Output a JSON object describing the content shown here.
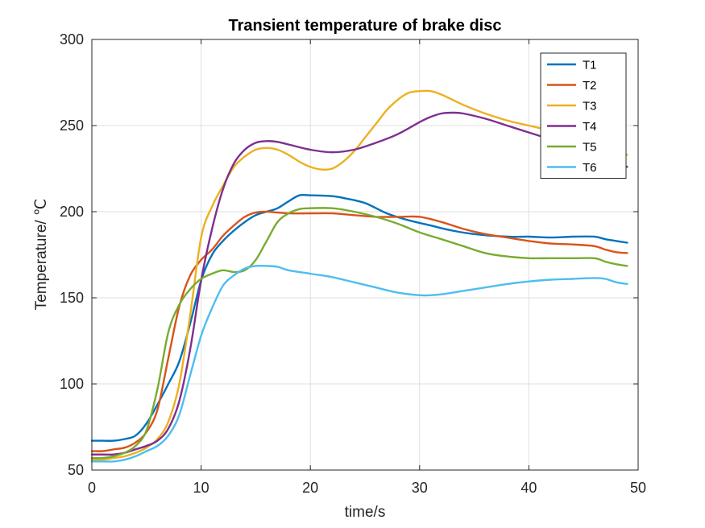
{
  "chart_data": {
    "type": "line",
    "title": "Transient temperature of brake disc",
    "xlabel": "time/s",
    "ylabel": "Temperature/ ℃",
    "xlim": [
      0,
      50
    ],
    "ylim": [
      50,
      300
    ],
    "xticks": [
      0,
      10,
      20,
      30,
      40,
      50
    ],
    "yticks": [
      50,
      100,
      150,
      200,
      250,
      300
    ],
    "grid": true,
    "legend_position": "top-right",
    "series": [
      {
        "name": "T1",
        "color": "#0072BD",
        "x": [
          0,
          1,
          2,
          3,
          4,
          5,
          6,
          7,
          8,
          9,
          10,
          11,
          12,
          13,
          14,
          15,
          16,
          17,
          18,
          19,
          20,
          22,
          23,
          25,
          27,
          29,
          31,
          33,
          35,
          38,
          40,
          42,
          44,
          46,
          47,
          48,
          49
        ],
        "y": [
          67,
          67,
          67,
          68,
          70,
          77,
          88,
          100,
          113,
          135,
          160,
          175,
          183,
          189,
          194,
          198,
          200,
          202,
          206,
          209.5,
          209.5,
          209,
          208,
          205,
          199,
          195,
          192,
          189,
          187,
          185.5,
          185.5,
          185,
          185.5,
          185.5,
          184,
          183,
          182
        ]
      },
      {
        "name": "T2",
        "color": "#D95319",
        "x": [
          0,
          1,
          2,
          3,
          4,
          5,
          6,
          7,
          8,
          9,
          10,
          11,
          12,
          13,
          14,
          15,
          16,
          17,
          18,
          20,
          22,
          24,
          26,
          28,
          30,
          32,
          34,
          36,
          38,
          40,
          42,
          44,
          46,
          47,
          48,
          49
        ],
        "y": [
          61,
          61,
          62,
          63,
          66,
          72,
          85,
          115,
          145,
          163,
          172,
          178,
          186,
          192,
          197,
          199.5,
          200,
          199.5,
          199,
          199,
          199,
          198,
          197,
          197,
          197,
          194,
          190,
          187,
          185,
          183,
          181.5,
          181,
          180,
          178,
          176.5,
          176
        ]
      },
      {
        "name": "T3",
        "color": "#EDB120",
        "x": [
          0,
          1,
          2,
          3,
          4,
          5,
          6,
          7,
          8,
          9,
          10,
          11,
          12,
          13,
          14,
          15,
          16,
          17,
          18,
          19,
          20,
          21,
          22,
          23,
          24,
          25,
          26,
          27,
          28,
          29,
          30,
          31,
          32,
          34,
          36,
          38,
          40,
          42,
          44,
          46,
          48,
          49
        ],
        "y": [
          56,
          56,
          57,
          58,
          60,
          63,
          68,
          78,
          100,
          140,
          185,
          203,
          215,
          226,
          232,
          236,
          237,
          236,
          233,
          229,
          226,
          224.5,
          225,
          229,
          235,
          243,
          251,
          259,
          265,
          269,
          270,
          270,
          268,
          262,
          257,
          253,
          250,
          247,
          244,
          241,
          236,
          233
        ]
      },
      {
        "name": "T4",
        "color": "#7E2F8E",
        "x": [
          0,
          1,
          2,
          3,
          4,
          5,
          6,
          7,
          8,
          9,
          10,
          11,
          12,
          13,
          14,
          15,
          16,
          17,
          18,
          20,
          22,
          24,
          26,
          28,
          30,
          31,
          32,
          33,
          34,
          36,
          38,
          40,
          42,
          44,
          46,
          48,
          49
        ],
        "y": [
          59,
          59,
          59,
          60,
          62,
          64,
          67,
          74,
          90,
          120,
          160,
          190,
          213,
          228,
          236,
          240,
          241,
          240.5,
          239,
          236,
          234.5,
          236,
          240,
          245,
          252,
          255,
          257,
          257.5,
          257,
          254,
          250,
          246,
          242,
          238,
          234,
          229,
          226
        ]
      },
      {
        "name": "T5",
        "color": "#77AC30",
        "x": [
          0,
          1,
          2,
          3,
          4,
          5,
          6,
          7,
          8,
          9,
          10,
          11,
          12,
          13,
          14,
          15,
          16,
          17,
          18,
          19,
          20,
          22,
          24,
          26,
          28,
          30,
          32,
          34,
          36,
          38,
          40,
          42,
          44,
          46,
          47,
          48,
          49
        ],
        "y": [
          57,
          57,
          58,
          60,
          64,
          73,
          97,
          130,
          146,
          155,
          161,
          164,
          166,
          165,
          166,
          172,
          183,
          194,
          199,
          201.5,
          202,
          202,
          200,
          197,
          193,
          188,
          184,
          180,
          176,
          174,
          173,
          173,
          173,
          173,
          171,
          169.5,
          168.5
        ]
      },
      {
        "name": "T6",
        "color": "#4DBEEE",
        "x": [
          0,
          1,
          2,
          3,
          4,
          5,
          6,
          7,
          8,
          9,
          10,
          11,
          12,
          13,
          14,
          15,
          16,
          17,
          18,
          20,
          22,
          24,
          26,
          28,
          30,
          31,
          32,
          34,
          36,
          38,
          40,
          42,
          44,
          46,
          47,
          48,
          49
        ],
        "y": [
          55,
          55,
          55,
          56,
          58,
          61,
          64,
          70,
          82,
          105,
          128,
          144,
          157,
          163,
          167,
          168.5,
          168.5,
          168,
          166,
          164,
          162,
          159,
          156,
          153,
          151.5,
          151.5,
          152,
          154,
          156,
          158,
          159.5,
          160.5,
          161,
          161.5,
          161,
          159,
          158
        ]
      }
    ]
  }
}
